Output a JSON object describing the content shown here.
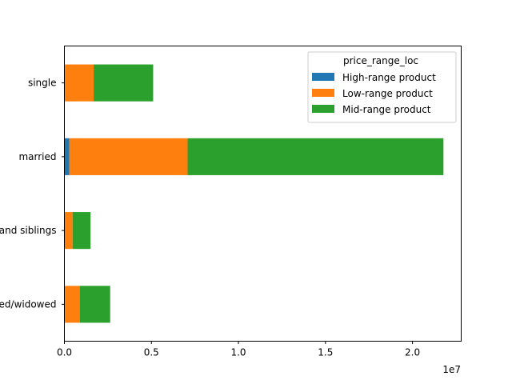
{
  "chart_data": {
    "type": "bar",
    "orientation": "horizontal",
    "stacked": true,
    "categories": [
      "divorced/widowed",
      "living with parents and siblings",
      "married",
      "single"
    ],
    "series": [
      {
        "name": "High-range product",
        "color": "#1f77b4",
        "values": [
          30000,
          20000,
          280000,
          30000
        ]
      },
      {
        "name": "Low-range product",
        "color": "#ff7f0e",
        "values": [
          850000,
          450000,
          6800000,
          1650000
        ]
      },
      {
        "name": "Mid-range product",
        "color": "#2ca02c",
        "values": [
          1750000,
          1030000,
          14700000,
          3420000
        ]
      }
    ],
    "xlim": [
      0,
      22800000
    ],
    "x_ticks": [
      0,
      5000000,
      10000000,
      15000000,
      20000000
    ],
    "x_tick_labels": [
      "0.0",
      "0.5",
      "1.0",
      "1.5",
      "2.0"
    ],
    "x_offset_label": "1e7",
    "legend": {
      "title": "price_range_loc",
      "placement": "top-right"
    },
    "grid": false
  }
}
